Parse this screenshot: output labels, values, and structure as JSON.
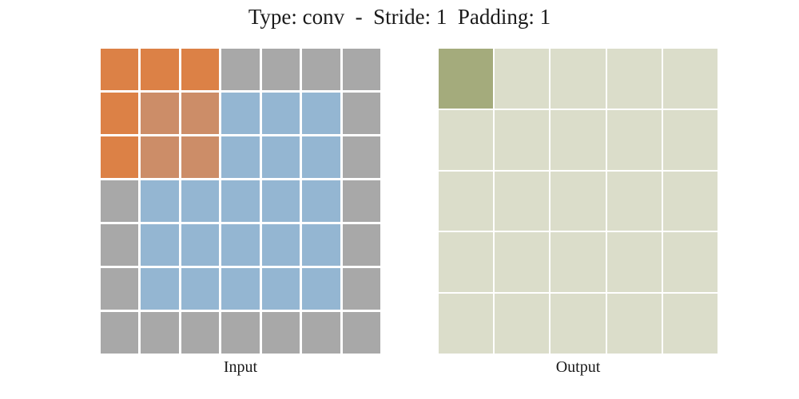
{
  "title": "Type: conv  -  Stride: 1  Padding: 1",
  "colors": {
    "kernel": "#dc8146",
    "kernel_over_input": "#cc8d68",
    "input": "#94b6d2",
    "padding": "#a8a8a8",
    "output": "#dbddca",
    "active_output": "#a4ab7c",
    "grid_gap": "#ffffff",
    "text": "#1a1a1a"
  },
  "cell_legend": {
    "k": "kernel",
    "m": "kernel_over_input",
    "b": "input",
    "p": "padding",
    "o": "output",
    "g": "active_output"
  },
  "input_grid": {
    "label": "Input",
    "rows": 7,
    "cols": 7,
    "cells": [
      [
        "k",
        "k",
        "k",
        "p",
        "p",
        "p",
        "p"
      ],
      [
        "k",
        "m",
        "m",
        "b",
        "b",
        "b",
        "p"
      ],
      [
        "k",
        "m",
        "m",
        "b",
        "b",
        "b",
        "p"
      ],
      [
        "p",
        "b",
        "b",
        "b",
        "b",
        "b",
        "p"
      ],
      [
        "p",
        "b",
        "b",
        "b",
        "b",
        "b",
        "p"
      ],
      [
        "p",
        "b",
        "b",
        "b",
        "b",
        "b",
        "p"
      ],
      [
        "p",
        "p",
        "p",
        "p",
        "p",
        "p",
        "p"
      ]
    ]
  },
  "output_grid": {
    "label": "Output",
    "rows": 5,
    "cols": 5,
    "cells": [
      [
        "g",
        "o",
        "o",
        "o",
        "o"
      ],
      [
        "o",
        "o",
        "o",
        "o",
        "o"
      ],
      [
        "o",
        "o",
        "o",
        "o",
        "o"
      ],
      [
        "o",
        "o",
        "o",
        "o",
        "o"
      ],
      [
        "o",
        "o",
        "o",
        "o",
        "o"
      ]
    ]
  }
}
